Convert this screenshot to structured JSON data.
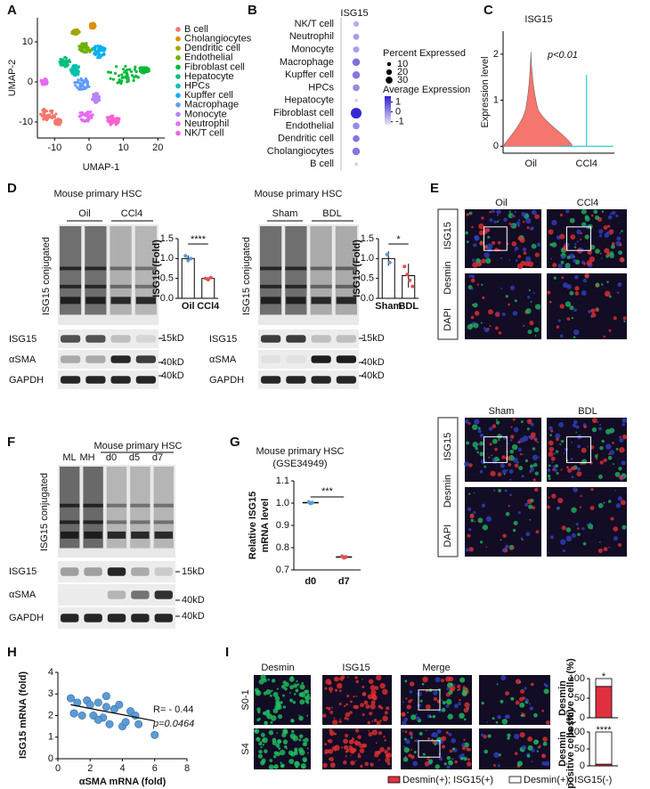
{
  "panels": {
    "A": {
      "label": "A",
      "xlabel": "UMAP-1",
      "ylabel": "UMAP-2",
      "xlim": [
        -15,
        22
      ],
      "ylim": [
        -14,
        16
      ],
      "xticks": [
        -10,
        0,
        10,
        20
      ],
      "yticks": [
        -10,
        0,
        10
      ],
      "legend": [
        {
          "name": "B cell",
          "color": "#f4766d"
        },
        {
          "name": "Cholangiocytes",
          "color": "#d89000"
        },
        {
          "name": "Dendritic cell",
          "color": "#a3a500"
        },
        {
          "name": "Endothelial",
          "color": "#6bb100"
        },
        {
          "name": "Fibroblast cell",
          "color": "#00ba38"
        },
        {
          "name": "Hepatocyte",
          "color": "#00bf7d"
        },
        {
          "name": "HPCs",
          "color": "#00c0af"
        },
        {
          "name": "Kupffer cell",
          "color": "#00b0f6"
        },
        {
          "name": "Macrophage",
          "color": "#619cff"
        },
        {
          "name": "Monocyte",
          "color": "#b983ff"
        },
        {
          "name": "Neutrophil",
          "color": "#e76bf3"
        },
        {
          "name": "NK/T cell",
          "color": "#fd61d1"
        }
      ]
    },
    "B": {
      "label": "B",
      "title": "ISG15",
      "cells": [
        "NK/T cell",
        "Neutrophil",
        "Monocyte",
        "Macrophage",
        "Kupffer cell",
        "HPCs",
        "Hepatocyte",
        "Fibroblast cell",
        "Endothelial",
        "Dendritic cell",
        "Cholangiocytes",
        "B cell"
      ],
      "percent": [
        8,
        10,
        10,
        15,
        15,
        12,
        3,
        30,
        12,
        12,
        15,
        3
      ],
      "average": [
        -0.5,
        -0.3,
        -0.3,
        0.4,
        0.3,
        0,
        -1,
        1.5,
        0,
        0.3,
        0.3,
        -1
      ],
      "size_title": "Percent Expressed",
      "size_ticks": [
        10,
        20,
        30
      ],
      "color_title": "Average Expression",
      "color_ticks": [
        1,
        0,
        -1
      ],
      "color_lim": [
        -1.3,
        1.6
      ]
    },
    "C": {
      "label": "C",
      "title": "ISG15",
      "ylabel": "Expression level",
      "ylim": [
        -0.15,
        2.5
      ],
      "yticks": [
        0,
        1,
        2
      ],
      "categories": [
        "Oil",
        "CCl4"
      ],
      "colors": [
        "#f4766d",
        "#00bfc4"
      ],
      "annotation": "p<0.01"
    },
    "D": {
      "label": "D",
      "left": {
        "title": "Mouse primary HSC",
        "groups": [
          "Oil",
          "CCl4"
        ],
        "blot_label": "ISG15 conjugated",
        "rows": [
          "ISG15",
          "αSMA",
          "GAPDH"
        ],
        "markers": [
          "15kD",
          "40kD",
          "40kD"
        ],
        "chart": {
          "ylabel": "ISG15 (Fold)",
          "categories": [
            "Oil",
            "CCl4"
          ],
          "values": [
            1.0,
            0.5
          ],
          "errors": [
            0.08,
            0.03
          ],
          "points": [
            [
              1.07,
              0.95,
              1.0
            ],
            [
              0.5,
              0.47,
              0.52
            ]
          ],
          "color": "#ffffff",
          "point_colors": [
            "#5b9bd5",
            "#e05050"
          ],
          "ylim": [
            0,
            1.5
          ],
          "yticks": [
            {
              "value": 0,
              "label": "0.0"
            },
            0.5,
            {
              "value": 1,
              "label": "1.0"
            },
            1.5
          ],
          "significance": "****"
        }
      },
      "right": {
        "title": "Mouse primary HSC",
        "groups": [
          "Sham",
          "BDL"
        ],
        "blot_label": "ISG15 conjugated",
        "rows": [
          "ISG15",
          "αSMA",
          "GAPDH"
        ],
        "markers": [
          "15kD",
          "40kD",
          "40kD"
        ],
        "chart": {
          "ylabel": "ISG15 (Fold)",
          "categories": [
            "Sham",
            "BDL"
          ],
          "values": [
            1.0,
            0.57
          ],
          "errors": [
            0.18,
            0.3
          ],
          "points": [
            [
              1.1,
              0.9
            ],
            [
              0.8,
              0.6,
              0.45,
              0.3
            ]
          ],
          "color": "#ffffff",
          "point_colors": [
            "#5b9bd5",
            "#e05050"
          ],
          "ylim": [
            0,
            1.5
          ],
          "yticks": [
            {
              "value": 0,
              "label": "0.0"
            },
            0.5,
            {
              "value": 1,
              "label": "1.0"
            },
            1.5
          ],
          "significance": "*"
        }
      }
    },
    "E": {
      "label": "E",
      "top_groups": [
        "Oil",
        "CCl4"
      ],
      "bottom_groups": [
        "Sham",
        "BDL"
      ],
      "stains": [
        "ISG15",
        "Desmin",
        "DAPI"
      ],
      "stain_colors": [
        "#e03030",
        "#20b060",
        "#3040c0"
      ]
    },
    "F": {
      "label": "F",
      "title": "Mouse primary HSC",
      "lanes": [
        "ML",
        "MH",
        "d0",
        "d5",
        "d7"
      ],
      "blot_label": "ISG15 conjugated",
      "rows": [
        "ISG15",
        "αSMA",
        "GAPDH"
      ],
      "markers": [
        "15kD",
        "40kD",
        "40kD"
      ]
    },
    "G": {
      "label": "G",
      "title": "Mouse primary HSC",
      "subtitle": "(GSE34949)",
      "ylabel": [
        "Relative ISG15",
        "mRNA level"
      ],
      "categories": [
        "d0",
        "d7"
      ],
      "means": [
        1.002,
        0.758
      ],
      "points": [
        [
          1.005,
          0.999,
          1.002
        ],
        [
          0.761,
          0.755,
          0.758
        ]
      ],
      "point_colors": [
        "#5b9bd5",
        "#e05050"
      ],
      "ylim": [
        0.7,
        1.1
      ],
      "yticks": [
        0.7,
        0.8,
        0.9,
        {
          "value": 1,
          "label": "1.0"
        },
        1.1
      ],
      "significance": "***"
    },
    "H": {
      "label": "H",
      "xlabel": "αSMA mRNA (fold)",
      "ylabel": "ISG15 mRNA (fold)",
      "x": [
        0.8,
        1.0,
        1.2,
        1.5,
        1.8,
        2.0,
        2.2,
        2.5,
        2.8,
        3.0,
        3.2,
        3.5,
        3.8,
        4.0,
        4.2,
        4.5,
        4.8,
        5.0,
        1.0,
        2.5,
        3.0,
        6.0
      ],
      "y": [
        2.8,
        2.1,
        2.6,
        2.0,
        2.7,
        2.5,
        2.0,
        2.6,
        1.9,
        2.4,
        1.6,
        2.3,
        2.5,
        1.5,
        1.7,
        2.2,
        2.0,
        1.6,
        2.1,
        1.8,
        2.9,
        1.1
      ],
      "color": "#5b9bd5",
      "xlim": [
        0,
        8
      ],
      "ylim": [
        0,
        4
      ],
      "xticks": [
        0,
        2,
        4,
        6,
        8
      ],
      "yticks": [
        0,
        1,
        2,
        3,
        4
      ],
      "fit": {
        "x": [
          0.8,
          6
        ],
        "y": [
          2.5,
          1.75
        ]
      },
      "r_text": "R= - 0.44",
      "p_text": "p=0.0464",
      "p_color": "#e0203a"
    },
    "I": {
      "label": "I",
      "columns": [
        "Desmin",
        "ISG15",
        "Merge"
      ],
      "rows": [
        "S0-1",
        "S4"
      ],
      "chart_ylabel": [
        "Desmin",
        "positive cells (%)"
      ],
      "charts": [
        {
          "series": [
            80,
            20
          ],
          "significance": "*"
        },
        {
          "series": [
            5,
            95
          ],
          "significance": "****"
        }
      ],
      "ylim": [
        0,
        100
      ],
      "yticks": [
        0,
        50,
        100
      ],
      "legend": [
        {
          "name": "Desmin(+); ISG15(+)",
          "color": "#e03040"
        },
        {
          "name": "Desmin(+); ISG15(-)",
          "color": "#ffffff"
        }
      ]
    }
  }
}
